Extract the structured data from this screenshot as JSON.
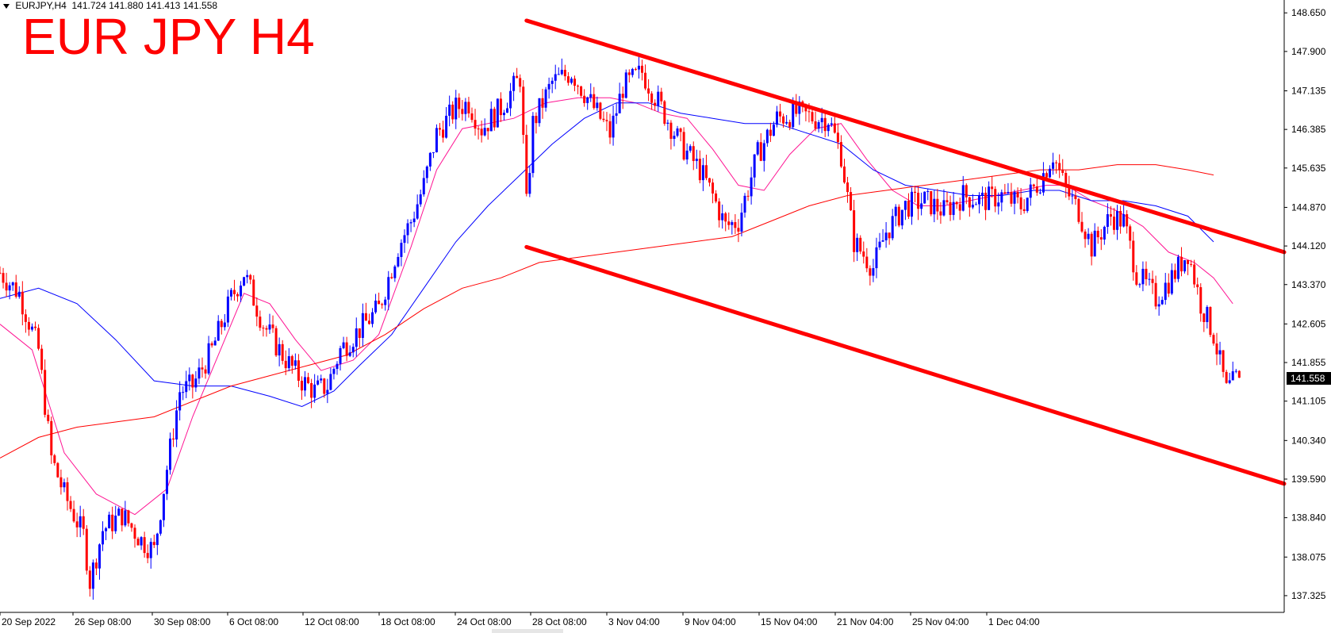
{
  "header": {
    "symbol": "EURJPY,H4",
    "open": "141.724",
    "high": "141.880",
    "low": "141.413",
    "close": "141.558"
  },
  "overlay_title": "EUR JPY H4",
  "current_price_label": "141.558",
  "colors": {
    "bull_candle": "#0000ff",
    "bear_candle": "#ff0000",
    "ma_fast": "#ff1493",
    "ma_mid": "#0000ff",
    "ma_slow": "#ff0000",
    "channel": "#ff0000",
    "axis": "#000000"
  },
  "chart_data": {
    "type": "candlestick",
    "symbol": "EURJPY",
    "timeframe": "H4",
    "ylim": [
      137.0,
      148.9
    ],
    "y_ticks": [
      "148.650",
      "147.900",
      "147.135",
      "146.385",
      "145.635",
      "144.870",
      "144.120",
      "143.370",
      "142.605",
      "141.855",
      "141.105",
      "140.340",
      "139.590",
      "138.840",
      "138.075",
      "137.325"
    ],
    "x_ticks": [
      "20 Sep 2022",
      "26 Sep 08:00",
      "30 Sep 08:00",
      "6 Oct 08:00",
      "12 Oct 08:00",
      "18 Oct 08:00",
      "24 Oct 08:00",
      "28 Oct 08:00",
      "3 Nov 04:00",
      "9 Nov 04:00",
      "15 Nov 04:00",
      "21 Nov 04:00",
      "25 Nov 04:00",
      "1 Dec 04:00"
    ],
    "x_index_range": [
      0,
      200
    ],
    "price_path": [
      [
        0,
        143.6
      ],
      [
        3,
        143.2
      ],
      [
        6,
        142.1
      ],
      [
        8,
        140.0
      ],
      [
        10,
        139.3
      ],
      [
        13,
        138.5
      ],
      [
        14,
        137.6
      ],
      [
        16,
        138.6
      ],
      [
        19,
        138.9
      ],
      [
        22,
        138.4
      ],
      [
        24,
        138.2
      ],
      [
        26,
        139.8
      ],
      [
        28,
        141.3
      ],
      [
        30,
        141.4
      ],
      [
        33,
        142.1
      ],
      [
        36,
        143.1
      ],
      [
        38,
        143.6
      ],
      [
        41,
        142.6
      ],
      [
        44,
        142.0
      ],
      [
        47,
        141.5
      ],
      [
        49,
        141.3
      ],
      [
        51,
        141.4
      ],
      [
        53,
        142.1
      ],
      [
        56,
        142.5
      ],
      [
        59,
        142.9
      ],
      [
        62,
        144.1
      ],
      [
        64,
        144.6
      ],
      [
        66,
        145.3
      ],
      [
        68,
        146.3
      ],
      [
        71,
        146.8
      ],
      [
        73,
        146.9
      ],
      [
        75,
        146.4
      ],
      [
        78,
        146.8
      ],
      [
        81,
        147.4
      ],
      [
        82,
        144.9
      ],
      [
        83,
        146.5
      ],
      [
        86,
        147.3
      ],
      [
        89,
        147.5
      ],
      [
        92,
        146.9
      ],
      [
        95,
        146.3
      ],
      [
        97,
        147.2
      ],
      [
        100,
        147.5
      ],
      [
        103,
        146.8
      ],
      [
        106,
        146.1
      ],
      [
        109,
        145.6
      ],
      [
        111,
        145.1
      ],
      [
        113,
        144.5
      ],
      [
        115,
        144.6
      ],
      [
        118,
        145.9
      ],
      [
        121,
        146.6
      ],
      [
        124,
        146.7
      ],
      [
        127,
        146.6
      ],
      [
        129,
        146.6
      ],
      [
        131,
        145.9
      ],
      [
        133,
        144.2
      ],
      [
        136,
        143.7
      ],
      [
        138,
        144.4
      ],
      [
        141,
        144.9
      ],
      [
        144,
        145.0
      ],
      [
        147,
        144.8
      ],
      [
        150,
        145.1
      ],
      [
        153,
        145.0
      ],
      [
        156,
        145.1
      ],
      [
        159,
        144.9
      ],
      [
        162,
        145.4
      ],
      [
        164,
        145.9
      ],
      [
        166,
        145.2
      ],
      [
        168,
        144.8
      ],
      [
        170,
        144.1
      ],
      [
        173,
        144.7
      ],
      [
        175,
        144.6
      ],
      [
        177,
        143.6
      ],
      [
        180,
        143.1
      ],
      [
        183,
        143.6
      ],
      [
        185,
        144.0
      ],
      [
        187,
        143.0
      ],
      [
        189,
        142.4
      ],
      [
        191,
        141.3
      ],
      [
        193,
        141.6
      ]
    ],
    "series": [
      {
        "kind": "moving_average",
        "points": [
          [
            0,
            142.6
          ],
          [
            5,
            142.1
          ],
          [
            10,
            140.1
          ],
          [
            15,
            139.3
          ],
          [
            21,
            138.9
          ],
          [
            26,
            139.4
          ],
          [
            30,
            140.8
          ],
          [
            35,
            142.3
          ],
          [
            38,
            143.2
          ],
          [
            42,
            143.0
          ],
          [
            46,
            142.3
          ],
          [
            50,
            141.7
          ],
          [
            55,
            141.9
          ],
          [
            59,
            142.4
          ],
          [
            64,
            144.1
          ],
          [
            68,
            145.6
          ],
          [
            72,
            146.4
          ],
          [
            76,
            146.5
          ],
          [
            80,
            146.6
          ],
          [
            85,
            146.9
          ],
          [
            90,
            147.0
          ],
          [
            95,
            147.0
          ],
          [
            99,
            146.9
          ],
          [
            103,
            146.7
          ],
          [
            107,
            146.6
          ],
          [
            111,
            146.0
          ],
          [
            115,
            145.3
          ],
          [
            119,
            145.2
          ],
          [
            123,
            145.9
          ],
          [
            127,
            146.4
          ],
          [
            131,
            146.5
          ],
          [
            135,
            145.8
          ],
          [
            139,
            145.2
          ],
          [
            143,
            144.9
          ],
          [
            147,
            144.9
          ],
          [
            151,
            145.0
          ],
          [
            155,
            145.1
          ],
          [
            159,
            145.2
          ],
          [
            163,
            145.3
          ],
          [
            166,
            145.3
          ],
          [
            170,
            145.0
          ],
          [
            174,
            144.8
          ],
          [
            178,
            144.5
          ],
          [
            182,
            144.0
          ],
          [
            186,
            143.8
          ],
          [
            189,
            143.5
          ],
          [
            192,
            143.0
          ]
        ]
      },
      {
        "kind": "moving_average",
        "points": [
          [
            0,
            143.1
          ],
          [
            6,
            143.3
          ],
          [
            12,
            143.0
          ],
          [
            18,
            142.3
          ],
          [
            24,
            141.5
          ],
          [
            30,
            141.4
          ],
          [
            36,
            141.4
          ],
          [
            42,
            141.2
          ],
          [
            47,
            141.0
          ],
          [
            52,
            141.3
          ],
          [
            56,
            141.8
          ],
          [
            61,
            142.4
          ],
          [
            66,
            143.3
          ],
          [
            71,
            144.2
          ],
          [
            76,
            144.9
          ],
          [
            81,
            145.5
          ],
          [
            86,
            146.1
          ],
          [
            91,
            146.6
          ],
          [
            96,
            146.9
          ],
          [
            101,
            146.9
          ],
          [
            106,
            146.7
          ],
          [
            111,
            146.6
          ],
          [
            116,
            146.5
          ],
          [
            121,
            146.5
          ],
          [
            126,
            146.3
          ],
          [
            131,
            146.1
          ],
          [
            136,
            145.6
          ],
          [
            141,
            145.3
          ],
          [
            146,
            145.2
          ],
          [
            151,
            145.1
          ],
          [
            156,
            145.1
          ],
          [
            161,
            145.2
          ],
          [
            165,
            145.2
          ],
          [
            170,
            145.0
          ],
          [
            175,
            145.0
          ],
          [
            180,
            144.9
          ],
          [
            185,
            144.7
          ],
          [
            189,
            144.2
          ]
        ]
      },
      {
        "kind": "moving_average",
        "points": [
          [
            0,
            140.0
          ],
          [
            6,
            140.4
          ],
          [
            12,
            140.6
          ],
          [
            18,
            140.7
          ],
          [
            24,
            140.8
          ],
          [
            30,
            141.1
          ],
          [
            36,
            141.4
          ],
          [
            42,
            141.6
          ],
          [
            48,
            141.8
          ],
          [
            54,
            142.0
          ],
          [
            60,
            142.4
          ],
          [
            66,
            142.9
          ],
          [
            72,
            143.3
          ],
          [
            78,
            143.5
          ],
          [
            84,
            143.8
          ],
          [
            90,
            143.9
          ],
          [
            96,
            144.0
          ],
          [
            102,
            144.1
          ],
          [
            108,
            144.2
          ],
          [
            114,
            144.3
          ],
          [
            120,
            144.6
          ],
          [
            126,
            144.9
          ],
          [
            132,
            145.1
          ],
          [
            138,
            145.2
          ],
          [
            144,
            145.3
          ],
          [
            150,
            145.4
          ],
          [
            156,
            145.5
          ],
          [
            162,
            145.6
          ],
          [
            168,
            145.6
          ],
          [
            174,
            145.7
          ],
          [
            180,
            145.7
          ],
          [
            185,
            145.6
          ],
          [
            189,
            145.5
          ]
        ]
      }
    ],
    "annotations": [
      {
        "kind": "trendline",
        "from": [
          82,
          148.5
        ],
        "to": [
          200,
          144.0
        ]
      },
      {
        "kind": "trendline",
        "from": [
          82,
          144.1
        ],
        "to": [
          200,
          139.5
        ]
      }
    ]
  }
}
